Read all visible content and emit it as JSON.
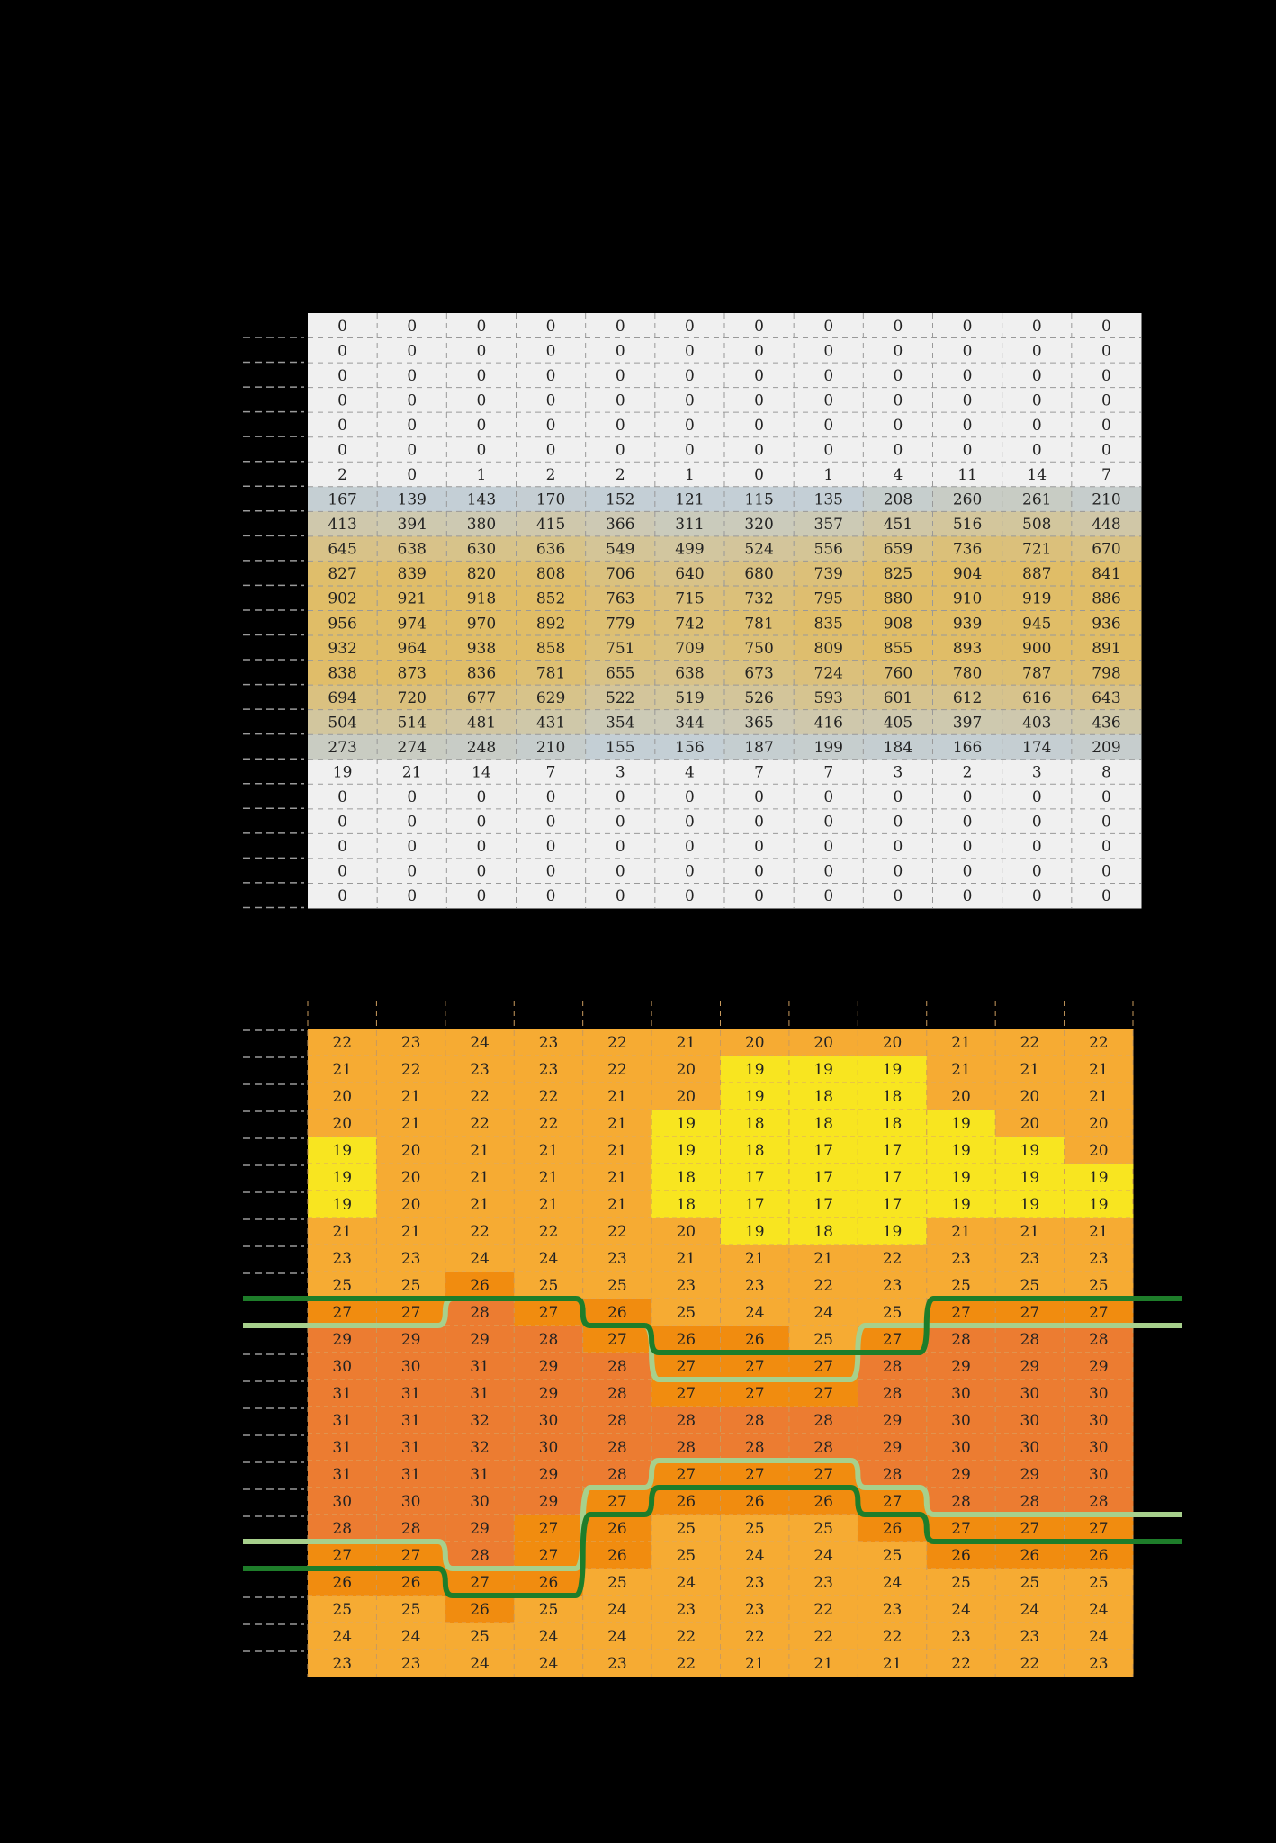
{
  "colors": {
    "background": "#000000",
    "empty_cell": "#f0f0f0",
    "low_light": "#c4cfd6",
    "high_light": "#e0bd67",
    "cool_temp": "#f8e520",
    "mild_temp": "#f6ab33",
    "warm_temp": "#f18c0f",
    "hot_temp": "#ec7c31",
    "comfort_line_dark": "#1e7d2a",
    "comfort_line_light": "#a7d08c",
    "grid_line": "#999999"
  },
  "chart_data": [
    {
      "type": "heatmap",
      "rows": 24,
      "columns": 12,
      "grid": true,
      "values": [
        [
          0,
          0,
          0,
          0,
          0,
          0,
          0,
          0,
          0,
          0,
          0,
          0
        ],
        [
          0,
          0,
          0,
          0,
          0,
          0,
          0,
          0,
          0,
          0,
          0,
          0
        ],
        [
          0,
          0,
          0,
          0,
          0,
          0,
          0,
          0,
          0,
          0,
          0,
          0
        ],
        [
          0,
          0,
          0,
          0,
          0,
          0,
          0,
          0,
          0,
          0,
          0,
          0
        ],
        [
          0,
          0,
          0,
          0,
          0,
          0,
          0,
          0,
          0,
          0,
          0,
          0
        ],
        [
          0,
          0,
          0,
          0,
          0,
          0,
          0,
          0,
          0,
          0,
          0,
          0
        ],
        [
          2,
          0,
          1,
          2,
          2,
          1,
          0,
          1,
          4,
          11,
          14,
          7
        ],
        [
          167,
          139,
          143,
          170,
          152,
          121,
          115,
          135,
          208,
          260,
          261,
          210
        ],
        [
          413,
          394,
          380,
          415,
          366,
          311,
          320,
          357,
          451,
          516,
          508,
          448
        ],
        [
          645,
          638,
          630,
          636,
          549,
          499,
          524,
          556,
          659,
          736,
          721,
          670
        ],
        [
          827,
          839,
          820,
          808,
          706,
          640,
          680,
          739,
          825,
          904,
          887,
          841
        ],
        [
          902,
          921,
          918,
          852,
          763,
          715,
          732,
          795,
          880,
          910,
          919,
          886
        ],
        [
          956,
          974,
          970,
          892,
          779,
          742,
          781,
          835,
          908,
          939,
          945,
          936
        ],
        [
          932,
          964,
          938,
          858,
          751,
          709,
          750,
          809,
          855,
          893,
          900,
          891
        ],
        [
          838,
          873,
          836,
          781,
          655,
          638,
          673,
          724,
          760,
          780,
          787,
          798
        ],
        [
          694,
          720,
          677,
          629,
          522,
          519,
          526,
          593,
          601,
          612,
          616,
          643
        ],
        [
          504,
          514,
          481,
          431,
          354,
          344,
          365,
          416,
          405,
          397,
          403,
          436
        ],
        [
          273,
          274,
          248,
          210,
          155,
          156,
          187,
          199,
          184,
          166,
          174,
          209
        ],
        [
          19,
          21,
          14,
          7,
          3,
          4,
          7,
          7,
          3,
          2,
          3,
          8
        ],
        [
          0,
          0,
          0,
          0,
          0,
          0,
          0,
          0,
          0,
          0,
          0,
          0
        ],
        [
          0,
          0,
          0,
          0,
          0,
          0,
          0,
          0,
          0,
          0,
          0,
          0
        ],
        [
          0,
          0,
          0,
          0,
          0,
          0,
          0,
          0,
          0,
          0,
          0,
          0
        ],
        [
          0,
          0,
          0,
          0,
          0,
          0,
          0,
          0,
          0,
          0,
          0,
          0
        ],
        [
          0,
          0,
          0,
          0,
          0,
          0,
          0,
          0,
          0,
          0,
          0,
          0
        ]
      ]
    },
    {
      "type": "heatmap",
      "rows": 24,
      "columns": 12,
      "grid": true,
      "values": [
        [
          22,
          23,
          24,
          23,
          22,
          21,
          20,
          20,
          20,
          21,
          22,
          22
        ],
        [
          21,
          22,
          23,
          23,
          22,
          20,
          19,
          19,
          19,
          21,
          21,
          21
        ],
        [
          20,
          21,
          22,
          22,
          21,
          20,
          19,
          18,
          18,
          20,
          20,
          21
        ],
        [
          20,
          21,
          22,
          22,
          21,
          19,
          18,
          18,
          18,
          19,
          20,
          20
        ],
        [
          19,
          20,
          21,
          21,
          21,
          19,
          18,
          17,
          17,
          19,
          19,
          20
        ],
        [
          19,
          20,
          21,
          21,
          21,
          18,
          17,
          17,
          17,
          19,
          19,
          19
        ],
        [
          19,
          20,
          21,
          21,
          21,
          18,
          17,
          17,
          17,
          19,
          19,
          19
        ],
        [
          21,
          21,
          22,
          22,
          22,
          20,
          19,
          18,
          19,
          21,
          21,
          21
        ],
        [
          23,
          23,
          24,
          24,
          23,
          21,
          21,
          21,
          22,
          23,
          23,
          23
        ],
        [
          25,
          25,
          26,
          25,
          25,
          23,
          23,
          22,
          23,
          25,
          25,
          25
        ],
        [
          27,
          27,
          28,
          27,
          26,
          25,
          24,
          24,
          25,
          27,
          27,
          27
        ],
        [
          29,
          29,
          29,
          28,
          27,
          26,
          26,
          25,
          27,
          28,
          28,
          28
        ],
        [
          30,
          30,
          31,
          29,
          28,
          27,
          27,
          27,
          28,
          29,
          29,
          29
        ],
        [
          31,
          31,
          31,
          29,
          28,
          27,
          27,
          27,
          28,
          30,
          30,
          30
        ],
        [
          31,
          31,
          32,
          30,
          28,
          28,
          28,
          28,
          29,
          30,
          30,
          30
        ],
        [
          31,
          31,
          32,
          30,
          28,
          28,
          28,
          28,
          29,
          30,
          30,
          30
        ],
        [
          31,
          31,
          31,
          29,
          28,
          27,
          27,
          27,
          28,
          29,
          29,
          30
        ],
        [
          30,
          30,
          30,
          29,
          27,
          26,
          26,
          26,
          27,
          28,
          28,
          28
        ],
        [
          28,
          28,
          29,
          27,
          26,
          25,
          25,
          25,
          26,
          27,
          27,
          27
        ],
        [
          27,
          27,
          28,
          27,
          26,
          25,
          24,
          24,
          25,
          26,
          26,
          26
        ],
        [
          26,
          26,
          27,
          26,
          25,
          24,
          23,
          23,
          24,
          25,
          25,
          25
        ],
        [
          25,
          25,
          26,
          25,
          24,
          23,
          23,
          22,
          23,
          24,
          24,
          24
        ],
        [
          24,
          24,
          25,
          24,
          24,
          22,
          22,
          22,
          22,
          23,
          23,
          24
        ],
        [
          23,
          23,
          24,
          24,
          23,
          22,
          21,
          21,
          21,
          22,
          22,
          23
        ]
      ]
    }
  ]
}
